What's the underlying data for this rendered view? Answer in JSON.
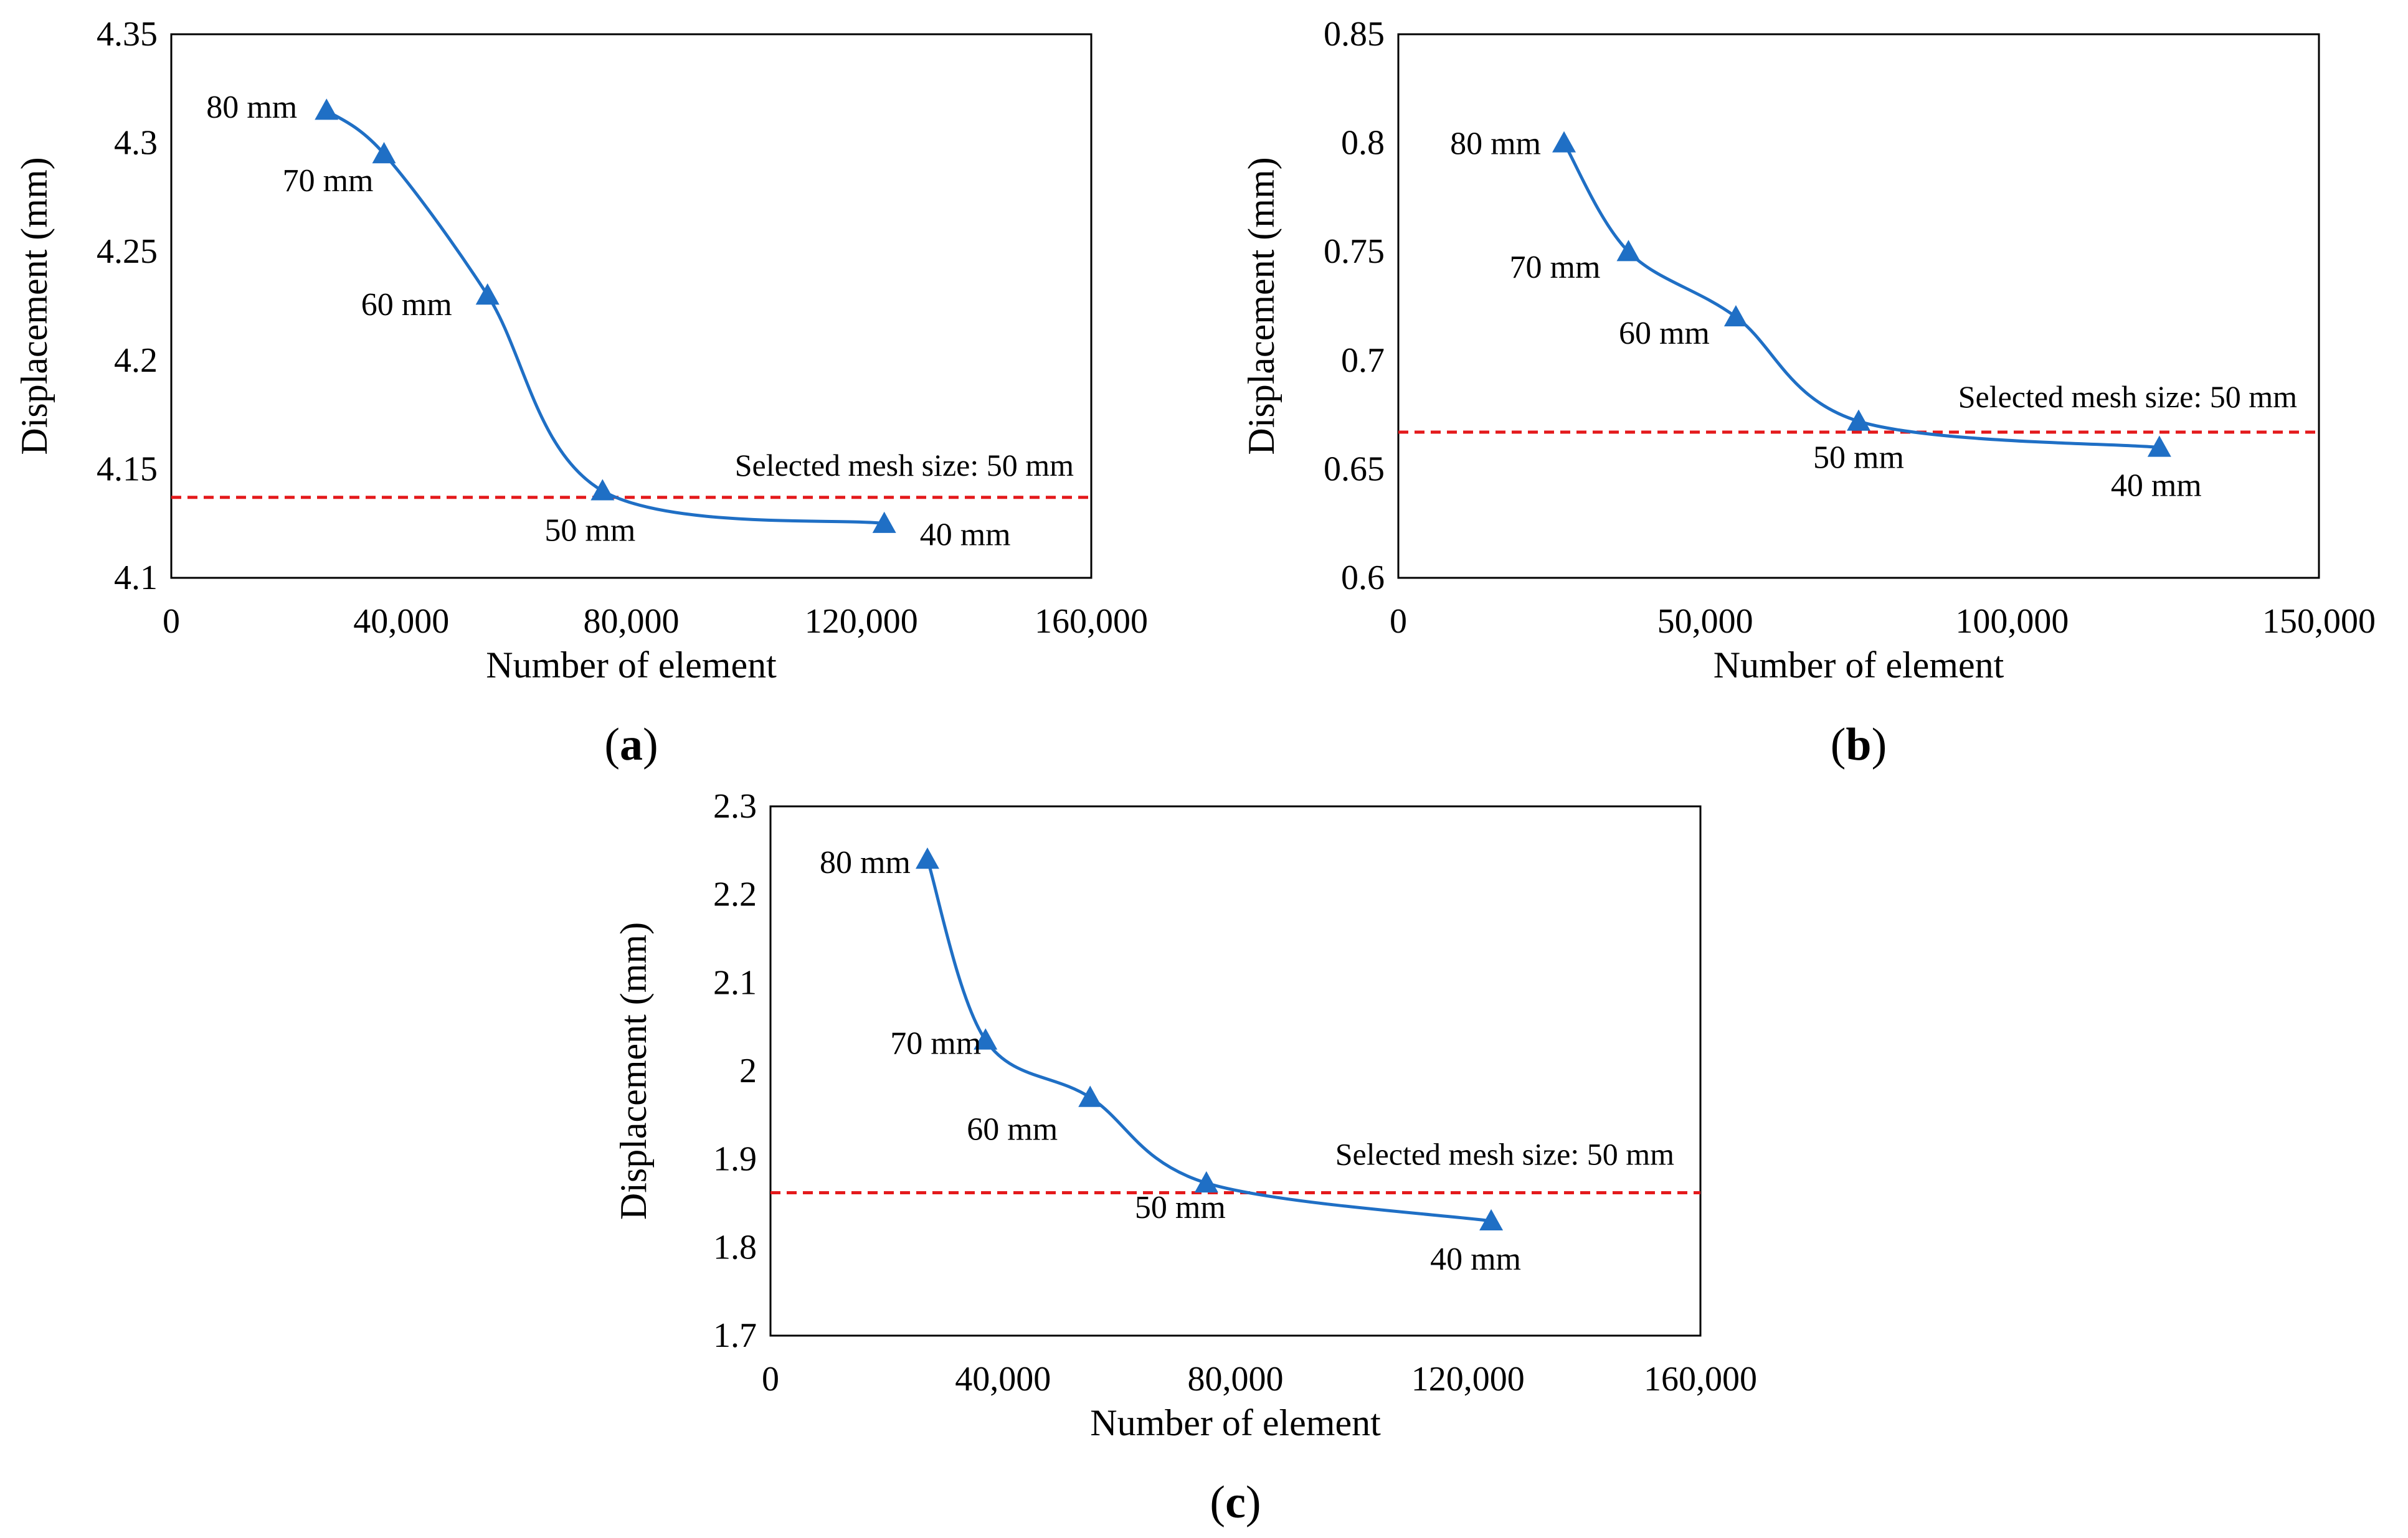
{
  "figure": {
    "colors": {
      "series": "#1f6fc5",
      "reference": "#e41a1c",
      "axis": "#000000"
    }
  },
  "chart_data": [
    {
      "panel_label": "a",
      "type": "line",
      "marker": "triangle",
      "xlabel": "Number of element",
      "ylabel": "Displacement  (mm)",
      "xlim": [
        0,
        160000
      ],
      "ylim": [
        4.1,
        4.35
      ],
      "xticks": [
        0,
        40000,
        80000,
        120000,
        160000
      ],
      "xtick_labels": [
        "0",
        "40,000",
        "80,000",
        "120,000",
        "160,000"
      ],
      "yticks": [
        4.1,
        4.15,
        4.2,
        4.25,
        4.3,
        4.35
      ],
      "ytick_labels": [
        "4.1",
        "4.15",
        "4.2",
        "4.25",
        "4.3",
        "4.35"
      ],
      "series": [
        {
          "name": "Displacement",
          "x": [
            27000,
            37000,
            55000,
            75000,
            124000
          ],
          "y": [
            4.315,
            4.295,
            4.23,
            4.14,
            4.125
          ],
          "point_labels": [
            "80 mm",
            "70 mm",
            "60 mm",
            "50 mm",
            "40 mm"
          ]
        }
      ],
      "reference_line": {
        "y": 4.137,
        "label": "Selected mesh size: 50 mm",
        "style": "dashed"
      }
    },
    {
      "panel_label": "b",
      "type": "line",
      "marker": "triangle",
      "xlabel": "Number of element",
      "ylabel": "Displacement  (mm)",
      "xlim": [
        0,
        150000
      ],
      "ylim": [
        0.6,
        0.85
      ],
      "xticks": [
        0,
        50000,
        100000,
        150000
      ],
      "xtick_labels": [
        "0",
        "50,000",
        "100,000",
        "150,000"
      ],
      "yticks": [
        0.6,
        0.65,
        0.7,
        0.75,
        0.8,
        0.85
      ],
      "ytick_labels": [
        "0.6",
        "0.65",
        "0.7",
        "0.75",
        "0.8",
        "0.85"
      ],
      "series": [
        {
          "name": "Displacement",
          "x": [
            27000,
            37500,
            55000,
            75000,
            124000
          ],
          "y": [
            0.8,
            0.75,
            0.72,
            0.672,
            0.66
          ],
          "point_labels": [
            "80 mm",
            "70 mm",
            "60 mm",
            "50 mm",
            "40 mm"
          ]
        }
      ],
      "reference_line": {
        "y": 0.667,
        "label": "Selected mesh size: 50 mm",
        "style": "dashed"
      }
    },
    {
      "panel_label": "c",
      "type": "line",
      "marker": "triangle",
      "xlabel": "Number of element",
      "ylabel": "Displacement  (mm)",
      "xlim": [
        0,
        160000
      ],
      "ylim": [
        1.7,
        2.3
      ],
      "xticks": [
        0,
        40000,
        80000,
        120000,
        160000
      ],
      "xtick_labels": [
        "0",
        "40,000",
        "80,000",
        "120,000",
        "160,000"
      ],
      "yticks": [
        1.7,
        1.8,
        1.9,
        2.0,
        2.1,
        2.2,
        2.3
      ],
      "ytick_labels": [
        "1.7",
        "1.8",
        "1.9",
        "2",
        "2.1",
        "2.2",
        "2.3"
      ],
      "series": [
        {
          "name": "Displacement",
          "x": [
            27000,
            37000,
            55000,
            75000,
            124000
          ],
          "y": [
            2.24,
            2.035,
            1.97,
            1.873,
            1.83
          ],
          "point_labels": [
            "80 mm",
            "70 mm",
            "60 mm",
            "50 mm",
            "40 mm"
          ]
        }
      ],
      "reference_line": {
        "y": 1.862,
        "label": "Selected mesh size: 50 mm",
        "style": "dashed"
      }
    }
  ]
}
